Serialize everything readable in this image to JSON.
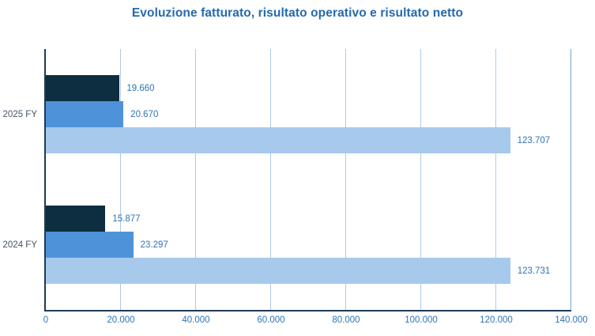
{
  "title": "Evoluzione fatturato, risultato operativo e risultato netto",
  "chart_data": {
    "type": "bar",
    "orientation": "horizontal",
    "title": "Evoluzione fatturato, risultato operativo e risultato netto",
    "categories": [
      "2025 FY",
      "2024 FY"
    ],
    "series": [
      {
        "name": "risultato netto",
        "color": "#0D2E40",
        "values": [
          19660,
          15877
        ],
        "labels": [
          "19.660",
          "15.877"
        ]
      },
      {
        "name": "risultato operativo",
        "color": "#4E93D9",
        "values": [
          20670,
          23297
        ],
        "labels": [
          "20.670",
          "23.297"
        ]
      },
      {
        "name": "fatturato",
        "color": "#A7C9EC",
        "values": [
          123707,
          123731
        ],
        "labels": [
          "123.707",
          "123.731"
        ]
      }
    ],
    "xlabel": "",
    "ylabel": "",
    "xlim": [
      0,
      140000
    ],
    "x_ticks": [
      0,
      20000,
      40000,
      60000,
      80000,
      100000,
      120000,
      140000
    ],
    "x_tick_labels": [
      "0",
      "20.000",
      "40.000",
      "60.000",
      "80.000",
      "100.000",
      "120.000",
      "140.000"
    ],
    "grid": true,
    "legend": "none",
    "colors": {
      "title": "#2569AC",
      "axis_line": "#1F3A54",
      "gridline": "#AFC9E6",
      "gridline_end": "#76A3D4",
      "value_label": "#2E74B5",
      "tick_label": "#2E74B5",
      "category_label": "#44546A",
      "background": "#FFFFFF"
    }
  }
}
